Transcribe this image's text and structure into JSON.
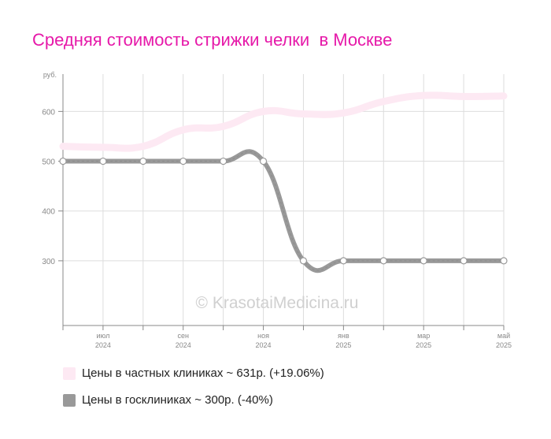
{
  "chart_data": {
    "type": "line",
    "title": "Средняя стоимость стрижки челки  в Москве",
    "ylabel": "руб.",
    "ylim": [
      170,
      675
    ],
    "yticks": [
      300,
      400,
      500,
      600
    ],
    "x": [
      "2024-06",
      "2024-07",
      "2024-08",
      "2024-09",
      "2024-10",
      "2024-11",
      "2024-12",
      "2025-01",
      "2025-02",
      "2025-03",
      "2025-04",
      "2025-05"
    ],
    "xtick_labels": [
      {
        "month": "июл",
        "year": "2024",
        "at": "2024-07"
      },
      {
        "month": "сен",
        "year": "2024",
        "at": "2024-09"
      },
      {
        "month": "ноя",
        "year": "2024",
        "at": "2024-11"
      },
      {
        "month": "янв",
        "year": "2025",
        "at": "2025-01"
      },
      {
        "month": "мар",
        "year": "2025",
        "at": "2025-03"
      },
      {
        "month": "май",
        "year": "2025",
        "at": "2025-05"
      }
    ],
    "series": [
      {
        "name": "Цены в частных клиниках ~ 631р. (+19.06%)",
        "color": "#fde9f3",
        "values": [
          530,
          528,
          530,
          563,
          570,
          600,
          595,
          597,
          620,
          632,
          630,
          631
        ],
        "markers": false,
        "width": 9
      },
      {
        "name": "Цены в госклиниках ~ 300р. (-40%)",
        "color": "#999999",
        "values": [
          500,
          500,
          500,
          500,
          500,
          500,
          300,
          300,
          300,
          300,
          300,
          300
        ],
        "markers": true,
        "width": 6
      }
    ],
    "grid": true,
    "legend": "bottom"
  },
  "watermark": "© KrasotaiMedicina.ru"
}
